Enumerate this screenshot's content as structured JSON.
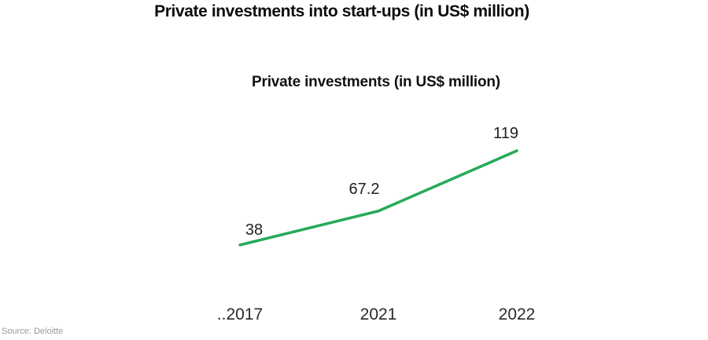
{
  "page": {
    "title": "Private investments into start-ups (in US$ million)",
    "source": "Source: Deloitte"
  },
  "chart_data": {
    "type": "line",
    "title": "Private investments (in US$ million)",
    "categories": [
      "..2017",
      "2021",
      "2022"
    ],
    "series": [
      {
        "name": "Private investments",
        "values": [
          38,
          67.2,
          119
        ]
      }
    ],
    "data_labels": [
      "38",
      "67.2",
      "119"
    ],
    "line_color": "#25ab57",
    "background": "#ffffff",
    "grid": false,
    "legend": false,
    "markers": false,
    "y_axis_visible": false
  }
}
